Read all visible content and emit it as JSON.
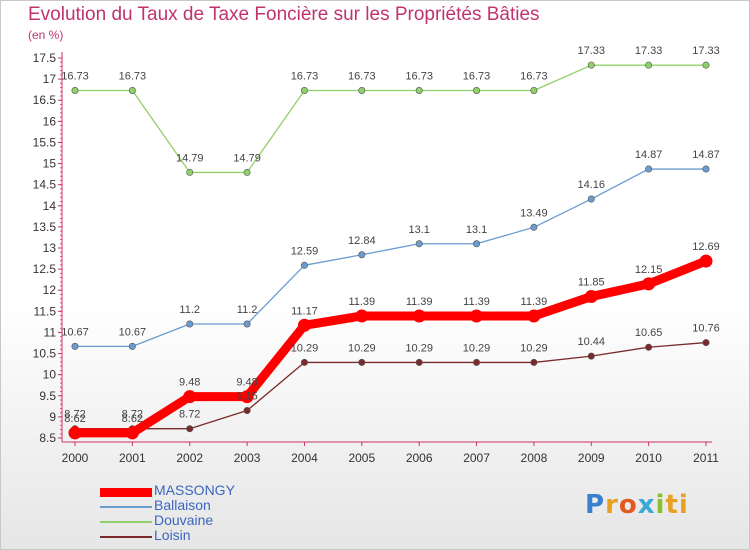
{
  "header": {
    "title": "Evolution du Taux de Taxe Foncière sur les Propriétés Bâties",
    "unit": "(en %)"
  },
  "logo": {
    "text": "Proxiti",
    "letters": [
      "P",
      "r",
      "o",
      "x",
      "i",
      "ti"
    ]
  },
  "chart_data": {
    "type": "line",
    "title": "Evolution du Taux de Taxe Foncière sur les Propriétés Bâties",
    "ylabel": "(en %)",
    "xlabel": "",
    "x": [
      2000,
      2001,
      2002,
      2003,
      2004,
      2005,
      2006,
      2007,
      2008,
      2009,
      2010,
      2011
    ],
    "ylim": [
      8.5,
      17.5
    ],
    "yticks": [
      8.5,
      9,
      9.5,
      10,
      10.5,
      11,
      11.5,
      12,
      12.5,
      13,
      13.5,
      14,
      14.5,
      15,
      15.5,
      16,
      16.5,
      17,
      17.5
    ],
    "grid": false,
    "legend_position": "bottom-left",
    "series": [
      {
        "name": "MASSONGY",
        "color": "#ff0000",
        "values": [
          8.62,
          8.62,
          9.48,
          9.48,
          11.17,
          11.39,
          11.39,
          11.39,
          11.39,
          11.85,
          12.15,
          12.69
        ],
        "labels": [
          "8.62",
          "8.62",
          "9.48",
          "9.48",
          "11.17",
          "11.39",
          "11.39",
          "11.39",
          "11.39",
          "11.85",
          "12.15",
          "12.69"
        ]
      },
      {
        "name": "Ballaison",
        "color": "#6a9cd0",
        "values": [
          10.67,
          10.67,
          11.2,
          11.2,
          12.59,
          12.84,
          13.1,
          13.1,
          13.49,
          14.16,
          14.87,
          14.87
        ],
        "labels": [
          "10.67",
          "10.67",
          "11.2",
          "11.2",
          "12.59",
          "12.84",
          "13.1",
          "13.1",
          "13.49",
          "14.16",
          "14.87",
          "14.87"
        ]
      },
      {
        "name": "Douvaine",
        "color": "#90d068",
        "values": [
          16.73,
          16.73,
          14.79,
          14.79,
          16.73,
          16.73,
          16.73,
          16.73,
          16.73,
          17.33,
          17.33,
          17.33
        ],
        "labels": [
          "16.73",
          "16.73",
          "14.79",
          "14.79",
          "16.73",
          "16.73",
          "16.73",
          "16.73",
          "16.73",
          "17.33",
          "17.33",
          "17.33"
        ]
      },
      {
        "name": "Loisin",
        "color": "#7a2a2a",
        "values": [
          8.72,
          8.72,
          8.72,
          9.15,
          10.29,
          10.29,
          10.29,
          10.29,
          10.29,
          10.44,
          10.65,
          10.76
        ],
        "labels": [
          "8.72",
          "8.72",
          "8.72",
          "9.15",
          "10.29",
          "10.29",
          "10.29",
          "10.29",
          "10.29",
          "10.44",
          "10.65",
          "10.76"
        ]
      }
    ]
  }
}
